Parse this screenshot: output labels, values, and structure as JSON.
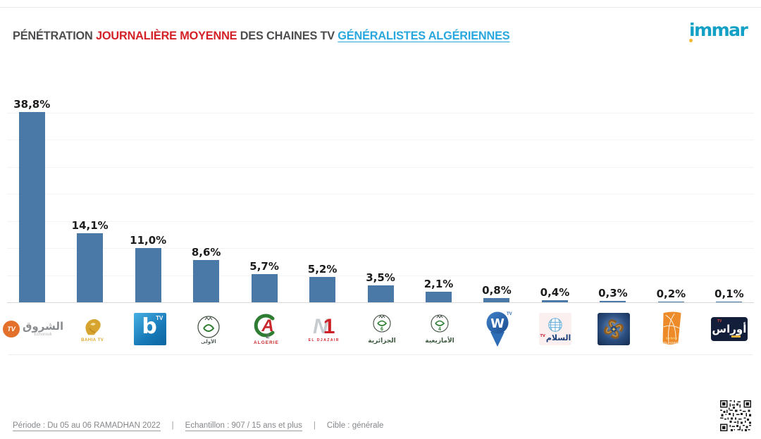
{
  "header": {
    "title": {
      "part1": "PÉNÉTRATION ",
      "part2": "JOURNALIÈRE MOYENNE",
      "part3": " DES CHAINES TV ",
      "part4": "GÉNÉRALISTES ALGÉRIENNES"
    },
    "brand": "immar"
  },
  "chart_data": {
    "type": "bar",
    "title": "Pénétration journalière moyenne des chaines TV généralistes algériennes",
    "categories": [
      "Echorouk TV",
      "Bahia TV",
      "b TV (Beur TV)",
      "Télévision Algérienne (ENTV)",
      "Canal Algérie 2",
      "N1 El Djazair",
      "TV6 El Djazairia",
      "TV4 Tamazight",
      "W TV",
      "Essalam TV",
      "Chaîne au logo spirale dorée",
      "Berbère Télévision",
      "Aurès TV"
    ],
    "values": [
      38.8,
      14.1,
      11.0,
      8.6,
      5.7,
      5.2,
      3.5,
      2.1,
      0.8,
      0.4,
      0.3,
      0.2,
      0.1
    ],
    "value_labels": [
      "38,8%",
      "14,1%",
      "11,0%",
      "8,6%",
      "5,7%",
      "5,2%",
      "3,5%",
      "2,1%",
      "0,8%",
      "0,4%",
      "0,3%",
      "0,2%",
      "0,1%"
    ],
    "xlabel": "",
    "ylabel": "",
    "ylim": [
      0,
      40
    ],
    "grid": true,
    "legend": false,
    "bar_color": "#4a79a8"
  },
  "channels": [
    {
      "name": "Echorouk TV",
      "label": "38,8%",
      "logo_tv": "TV",
      "logo_arabic": "الشروق",
      "logo_sub": "Echorouk"
    },
    {
      "name": "Bahia TV",
      "label": "14,1%",
      "logo_text": "BAHIA TV"
    },
    {
      "name": "b TV (Beur TV)",
      "label": "11,0%",
      "logo_letter": "b",
      "logo_tv": "TV"
    },
    {
      "name": "Télévision Algérienne (ENTV)",
      "label": "8,6%",
      "logo_arabic": "الأولى"
    },
    {
      "name": "Canal Algérie 2",
      "label": "5,7%",
      "logo_letter": "A",
      "logo_number": "2",
      "logo_text": "ALGERIE"
    },
    {
      "name": "N1 El Djazair",
      "label": "5,2%",
      "logo_letter_n": "N",
      "logo_number": "1",
      "logo_text": "EL DJAZAIR"
    },
    {
      "name": "TV6 El Djazairia",
      "label": "3,5%",
      "logo_number": "6",
      "logo_arabic": "الجزائرية"
    },
    {
      "name": "TV4 Tamazight",
      "label": "2,1%",
      "logo_number": "4",
      "logo_arabic": "الأمازيغية"
    },
    {
      "name": "W TV",
      "label": "0,8%",
      "logo_letter": "W",
      "logo_tv": "TV"
    },
    {
      "name": "Essalam TV",
      "label": "0,4%",
      "logo_arabic": "السلام",
      "logo_tv": "TV"
    },
    {
      "name": "Chaîne au logo spirale dorée",
      "label": "0,3%"
    },
    {
      "name": "Berbère Télévision",
      "label": "0,2%",
      "logo_text1": "berbère",
      "logo_text2": "TELEVISION"
    },
    {
      "name": "Aurès TV",
      "label": "0,1%",
      "logo_arabic": "أوراس",
      "logo_tv": "TV"
    }
  ],
  "footer": {
    "periode": "Période : Du 05 au 06 RAMADHAN 2022",
    "separator": "|",
    "echantillon": "Echantillon : 907 / 15 ans et plus",
    "cible": "Cible : générale"
  },
  "colors": {
    "bar": "#4a79a8",
    "title_red": "#d42127",
    "title_blue": "#28a7de",
    "title_gray": "#4d4d4f",
    "brand_teal": "#13a0c6",
    "brand_dot": "#f3b734"
  }
}
